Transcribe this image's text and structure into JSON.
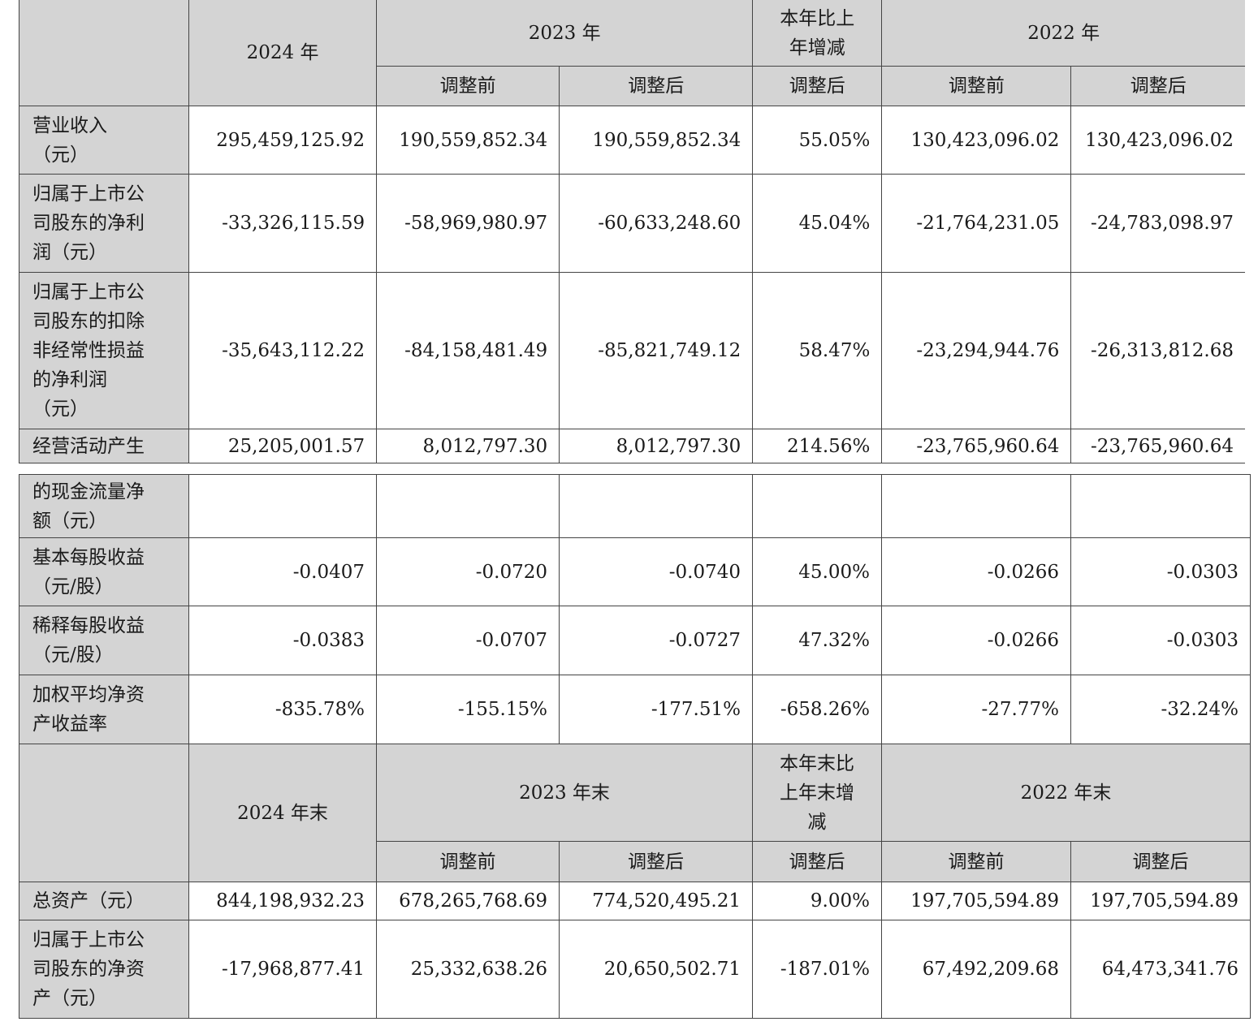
{
  "header_top": {
    "y2024": "2024 年",
    "y2023": "2023 年",
    "change": "本年比上\n年增减",
    "y2022": "2022 年",
    "sub": [
      "调整前",
      "调整后",
      "调整后",
      "调整前",
      "调整后"
    ]
  },
  "rows_top": [
    {
      "label": "营业收入\n（元）",
      "values": [
        "295,459,125.92",
        "190,559,852.34",
        "190,559,852.34",
        "55.05%",
        "130,423,096.02",
        "130,423,096.02"
      ]
    },
    {
      "label": "归属于上市公\n司股东的净利\n润（元）",
      "values": [
        "-33,326,115.59",
        "-58,969,980.97",
        "-60,633,248.60",
        "45.04%",
        "-21,764,231.05",
        "-24,783,098.97"
      ]
    },
    {
      "label": "归属于上市公\n司股东的扣除\n非经常性损益\n的净利润\n（元）",
      "values": [
        "-35,643,112.22",
        "-84,158,481.49",
        "-85,821,749.12",
        "58.47%",
        "-23,294,944.76",
        "-26,313,812.68"
      ]
    },
    {
      "label": "经营活动产生",
      "values": [
        "25,205,001.57",
        "8,012,797.30",
        "8,012,797.30",
        "214.56%",
        "-23,765,960.64",
        "-23,765,960.64"
      ]
    }
  ],
  "rows_bottom": [
    {
      "label": "的现金流量净\n额（元）",
      "values": [
        "",
        "",
        "",
        "",
        "",
        ""
      ]
    },
    {
      "label": "基本每股收益\n（元/股）",
      "values": [
        "-0.0407",
        "-0.0720",
        "-0.0740",
        "45.00%",
        "-0.0266",
        "-0.0303"
      ]
    },
    {
      "label": "稀释每股收益\n（元/股）",
      "values": [
        "-0.0383",
        "-0.0707",
        "-0.0727",
        "47.32%",
        "-0.0266",
        "-0.0303"
      ]
    },
    {
      "label": "加权平均净资\n产收益率",
      "values": [
        "-835.78%",
        "-155.15%",
        "-177.51%",
        "-658.26%",
        "-27.77%",
        "-32.24%"
      ]
    }
  ],
  "header_bottom": {
    "y2024": "2024 年末",
    "y2023": "2023 年末",
    "change": "本年末比\n上年末增\n减",
    "y2022": "2022 年末",
    "sub": [
      "调整前",
      "调整后",
      "调整后",
      "调整前",
      "调整后"
    ]
  },
  "rows_end": [
    {
      "label": "总资产（元）",
      "values": [
        "844,198,932.23",
        "678,265,768.69",
        "774,520,495.21",
        "9.00%",
        "197,705,594.89",
        "197,705,594.89"
      ]
    },
    {
      "label": "归属于上市公\n司股东的净资\n产（元）",
      "values": [
        "-17,968,877.41",
        "25,332,638.26",
        "20,650,502.71",
        "-187.01%",
        "67,492,209.68",
        "64,473,341.76"
      ]
    }
  ]
}
